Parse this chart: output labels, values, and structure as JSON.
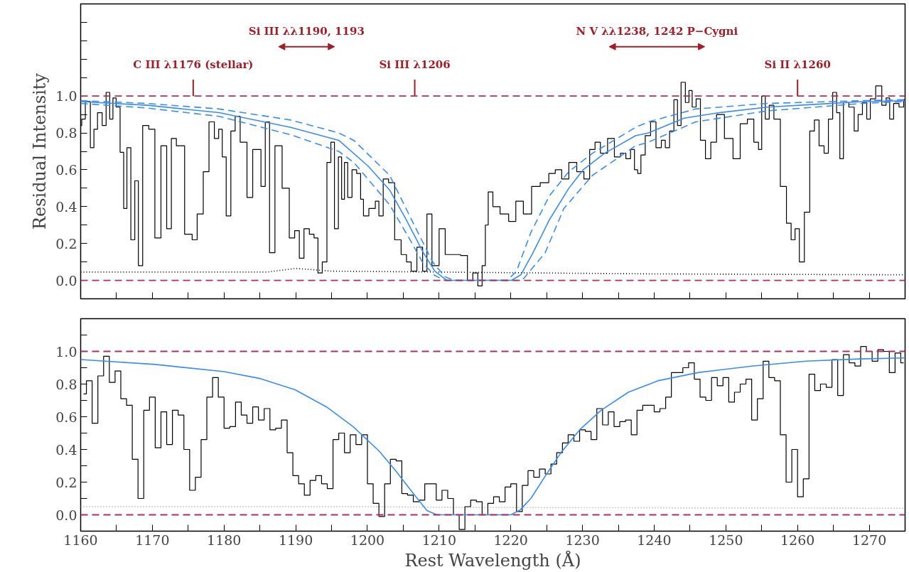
{
  "chart_data": [
    {
      "type": "step",
      "ylabel": "Residual Intensity",
      "xlim": [
        1160,
        1275
      ],
      "ylim": [
        -0.1,
        1.5
      ],
      "tick_labels": "y",
      "xticks": [
        {
          "value": 1160,
          "label": null
        },
        {
          "value": 1165,
          "label": null
        },
        {
          "value": 1170,
          "label": null
        },
        {
          "value": 1175,
          "label": null
        },
        {
          "value": 1180,
          "label": null
        },
        {
          "value": 1185,
          "label": null
        },
        {
          "value": 1190,
          "label": null
        },
        {
          "value": 1195,
          "label": null
        },
        {
          "value": 1200,
          "label": null
        },
        {
          "value": 1205,
          "label": null
        },
        {
          "value": 1210,
          "label": null
        },
        {
          "value": 1215,
          "label": null
        },
        {
          "value": 1220,
          "label": null
        },
        {
          "value": 1225,
          "label": null
        },
        {
          "value": 1230,
          "label": null
        },
        {
          "value": 1235,
          "label": null
        },
        {
          "value": 1240,
          "label": null
        },
        {
          "value": 1245,
          "label": null
        },
        {
          "value": 1250,
          "label": null
        },
        {
          "value": 1255,
          "label": null
        },
        {
          "value": 1260,
          "label": null
        },
        {
          "value": 1265,
          "label": null
        },
        {
          "value": 1270,
          "label": null
        }
      ],
      "yticks": [
        {
          "value": 0,
          "label": "0.0"
        },
        {
          "value": 0.1,
          "label": null
        },
        {
          "value": 0.2,
          "label": "0.2"
        },
        {
          "value": 0.3,
          "label": null
        },
        {
          "value": 0.4,
          "label": "0.4"
        },
        {
          "value": 0.5,
          "label": null
        },
        {
          "value": 0.6,
          "label": "0.6"
        },
        {
          "value": 0.7,
          "label": null
        },
        {
          "value": 0.8,
          "label": "0.8"
        },
        {
          "value": 0.9,
          "label": null
        },
        {
          "value": 1.0,
          "label": "1.0"
        },
        {
          "value": 1.1,
          "label": null
        },
        {
          "value": 1.2,
          "label": null
        },
        {
          "value": 1.3,
          "label": null
        },
        {
          "value": 1.4,
          "label": null
        }
      ],
      "ref_lines": [
        {
          "axis": "y",
          "value": 1.0,
          "color": "#a8325a",
          "line_style": "dashed"
        },
        {
          "axis": "y",
          "value": 0.0,
          "color": "#a8325a",
          "line_style": "dashed"
        }
      ],
      "annotations": [
        {
          "text": "C III λ1176 (stellar)",
          "x": 1175.7,
          "y": 1.0
        },
        "Si III λλ1190, 1193",
        "N V λλ1238, 1242 P−Cygni",
        {
          "text": "Si III λ1206",
          "x": 1206.6,
          "y": 1.0
        },
        {
          "text": "Si II λ1260",
          "x": 1260.0,
          "y": 1.0
        }
      ],
      "series": [
        {
          "type": "line",
          "color": "#000000",
          "line_style": "dotted",
          "x": [
            1160,
            1186,
            1190,
            1195,
            1210,
            1240,
            1275
          ],
          "values": [
            0.045,
            0.045,
            0.065,
            0.05,
            0.045,
            0.035,
            0.03
          ]
        },
        {
          "color": "#000000",
          "x": [
            1160.0,
            1160.3,
            1161.0,
            1161.7,
            1162.0,
            1162.7,
            1163.3,
            1163.8,
            1164.3,
            1164.7,
            1165.2,
            1165.8,
            1166.2,
            1166.7,
            1167.3,
            1167.8,
            1168.3,
            1169.0,
            1170.0,
            1170.7,
            1171.7,
            1172.3,
            1173.0,
            1173.7,
            1175.3,
            1175.8,
            1176.7,
            1177.5,
            1178.3,
            1179.0,
            1179.5,
            1180.0,
            1180.6,
            1181.3,
            1181.8,
            1182.7,
            1183.7,
            1184.3,
            1184.8,
            1185.5,
            1186.0,
            1186.7,
            1187.5,
            1188.7,
            1189.5,
            1190.2,
            1190.8,
            1191.5,
            1192.3,
            1192.8,
            1193.4,
            1194.0,
            1194.7,
            1195.1,
            1195.7,
            1196.2,
            1196.6,
            1197.0,
            1197.5,
            1198.2,
            1198.8,
            1199.3,
            1199.6,
            1200.8,
            1201.4,
            1201.8,
            1202.6,
            1203.3,
            1204.3,
            1205.1,
            1205.8,
            1206.4,
            1207.4,
            1208.0,
            1208.6,
            1209.4,
            1210.6,
            1211.1,
            1212.4,
            1213.6,
            1214.3,
            1215.1,
            1215.7,
            1216.3,
            1216.6,
            1217.1,
            1217.9,
            1219.1,
            1220.3,
            1221.1,
            1222.4,
            1223.4,
            1224.8,
            1225.8,
            1226.6,
            1227.6,
            1228.6,
            1229.8,
            1230.6,
            1231.4,
            1232.1,
            1232.9,
            1234.1,
            1234.8,
            1235.8,
            1236.3,
            1237.1,
            1237.4,
            1238.0,
            1238.3,
            1239.2,
            1239.8,
            1240.7,
            1241.3,
            1241.8,
            1242.5,
            1243.0,
            1243.5,
            1244.0,
            1244.7,
            1245.0,
            1245.6,
            1246.1,
            1246.8,
            1247.5,
            1248.3,
            1249.1,
            1250.5,
            1251.5,
            1252.5,
            1253.5,
            1254.3,
            1254.8,
            1255.2,
            1255.8,
            1256.3,
            1257.1,
            1258.1,
            1258.8,
            1259.4,
            1259.9,
            1260.6,
            1261.3,
            1262.1,
            1262.6,
            1263.4,
            1264.0,
            1264.6,
            1265.2,
            1265.7,
            1266.1,
            1266.7,
            1267.6,
            1268.2,
            1268.7,
            1269.4,
            1269.9,
            1270.4,
            1271.4,
            1272.1,
            1272.6,
            1273.1,
            1273.7,
            1274.6,
            1275.0
          ],
          "values": [
            0.84,
            0.875,
            0.97,
            0.72,
            0.82,
            0.91,
            0.84,
            1.02,
            0.875,
            0.99,
            0.94,
            0.695,
            0.39,
            0.72,
            0.22,
            0.54,
            0.08,
            0.84,
            0.82,
            0.23,
            0.73,
            0.28,
            0.77,
            0.73,
            0.25,
            0.22,
            0.36,
            0.59,
            0.86,
            0.77,
            0.82,
            0.67,
            0.35,
            0.81,
            0.89,
            0.75,
            0.45,
            0.71,
            0.71,
            0.51,
            0.86,
            0.15,
            0.73,
            0.5,
            0.23,
            0.27,
            0.12,
            0.28,
            0.25,
            0.23,
            0.04,
            0.1,
            0.64,
            0.75,
            0.28,
            0.67,
            0.44,
            0.64,
            0.45,
            0.6,
            0.58,
            0.44,
            0.35,
            0.39,
            0.43,
            0.35,
            0.55,
            0.53,
            0.22,
            0.14,
            0.1,
            0.05,
            0.18,
            0.05,
            0.36,
            0.08,
            0.28,
            0.14,
            0.14,
            0.135,
            0.0,
            0.04,
            -0.03,
            0.08,
            0.3,
            0.48,
            0.4,
            0.36,
            0.32,
            0.43,
            0.36,
            0.51,
            0.53,
            0.58,
            0.6,
            0.55,
            0.64,
            0.59,
            0.55,
            0.71,
            0.75,
            0.69,
            0.77,
            0.67,
            0.69,
            0.66,
            0.71,
            0.6,
            0.58,
            0.68,
            0.785,
            0.86,
            0.72,
            0.76,
            0.72,
            0.81,
            0.98,
            0.84,
            1.075,
            0.965,
            1.03,
            0.94,
            0.985,
            0.76,
            0.66,
            0.75,
            0.9,
            0.77,
            0.66,
            0.85,
            0.875,
            0.75,
            0.71,
            1.0,
            0.875,
            0.95,
            0.875,
            0.51,
            0.31,
            0.22,
            0.28,
            0.1,
            0.37,
            0.81,
            0.87,
            0.73,
            0.69,
            0.875,
            1.02,
            0.91,
            0.66,
            0.965,
            0.94,
            0.81,
            0.9,
            0.965,
            0.875,
            0.985,
            1.055,
            0.95,
            0.99,
            0.875,
            0.96,
            0.94,
            0.98
          ]
        },
        {
          "type": "line",
          "color": "#3b8cf0",
          "line_style": "dashed",
          "x": [
            1160,
            1169.3,
            1179.3,
            1189.3,
            1196,
            1198.1,
            1203.1,
            1206.4,
            1209.1,
            1210.8,
            1212.1,
            1219.5,
            1220.8,
            1222.8,
            1225.4,
            1228.1,
            1231.4,
            1237.4,
            1239.2,
            1245.8,
            1255.8,
            1269.1,
            1275
          ],
          "values": [
            0.975,
            0.96,
            0.93,
            0.87,
            0.8,
            0.76,
            0.57,
            0.31,
            0.1,
            0.02,
            0.0,
            0.0,
            0.05,
            0.26,
            0.46,
            0.59,
            0.69,
            0.83,
            0.86,
            0.93,
            0.96,
            0.975,
            0.98
          ]
        },
        {
          "type": "line",
          "color": "#3b8cf0",
          "line_style": "dashed",
          "x": [
            1160,
            1169.3,
            1179.3,
            1189.3,
            1196,
            1198.1,
            1203.1,
            1205.8,
            1207.8,
            1209.4,
            1210.8,
            1221,
            1221.8,
            1224.8,
            1227.4,
            1231.4,
            1237.4,
            1239.2,
            1245.8,
            1255.8,
            1269.1,
            1275
          ],
          "values": [
            0.96,
            0.935,
            0.89,
            0.79,
            0.7,
            0.64,
            0.41,
            0.23,
            0.09,
            0.026,
            0.0,
            0.0,
            0.01,
            0.15,
            0.39,
            0.57,
            0.73,
            0.75,
            0.86,
            0.92,
            0.96,
            0.97
          ]
        },
        {
          "type": "line",
          "color": "#3b8cf0",
          "line_style": "solid",
          "x": [
            1160,
            1169.3,
            1179.3,
            1189.3,
            1196,
            1200.1,
            1203.1,
            1205.4,
            1207.8,
            1209.4,
            1211.1,
            1220.1,
            1221.4,
            1223.1,
            1225.4,
            1228.1,
            1230.1,
            1233.1,
            1237.4,
            1239.2,
            1244.2,
            1249.1,
            1255.8,
            1262.4,
            1269.1,
            1275
          ],
          "values": [
            0.97,
            0.95,
            0.91,
            0.83,
            0.76,
            0.62,
            0.49,
            0.33,
            0.15,
            0.05,
            0.0,
            0.0,
            0.03,
            0.15,
            0.33,
            0.5,
            0.6,
            0.69,
            0.785,
            0.8,
            0.88,
            0.91,
            0.94,
            0.955,
            0.97,
            0.975
          ]
        }
      ]
    },
    {
      "type": "step",
      "xlabel": "Rest Wavelength (Å)",
      "xlim": [
        1160,
        1275
      ],
      "ylim": [
        -0.1,
        1.2
      ],
      "xticks": [
        {
          "value": 1160,
          "label": "1160"
        },
        {
          "value": 1165,
          "label": null
        },
        {
          "value": 1170,
          "label": "1170"
        },
        {
          "value": 1175,
          "label": null
        },
        {
          "value": 1180,
          "label": "1180"
        },
        {
          "value": 1185,
          "label": null
        },
        {
          "value": 1190,
          "label": "1190"
        },
        {
          "value": 1195,
          "label": null
        },
        {
          "value": 1200,
          "label": "1200"
        },
        {
          "value": 1205,
          "label": null
        },
        {
          "value": 1210,
          "label": "1210"
        },
        {
          "value": 1215,
          "label": null
        },
        {
          "value": 1220,
          "label": "1220"
        },
        {
          "value": 1225,
          "label": null
        },
        {
          "value": 1230,
          "label": "1230"
        },
        {
          "value": 1235,
          "label": null
        },
        {
          "value": 1240,
          "label": "1240"
        },
        {
          "value": 1245,
          "label": null
        },
        {
          "value": 1250,
          "label": "1250"
        },
        {
          "value": 1255,
          "label": null
        },
        {
          "value": 1260,
          "label": "1260"
        },
        {
          "value": 1265,
          "label": null
        },
        {
          "value": 1270,
          "label": "1270"
        }
      ],
      "yticks": [
        {
          "value": 0,
          "label": "0.0"
        },
        {
          "value": 0.1,
          "label": null
        },
        {
          "value": 0.2,
          "label": "0.2"
        },
        {
          "value": 0.3,
          "label": null
        },
        {
          "value": 0.4,
          "label": "0.4"
        },
        {
          "value": 0.5,
          "label": null
        },
        {
          "value": 0.6,
          "label": "0.6"
        },
        {
          "value": 0.7,
          "label": null
        },
        {
          "value": 0.8,
          "label": "0.8"
        },
        {
          "value": 0.9,
          "label": null
        },
        {
          "value": 1.0,
          "label": "1.0"
        },
        {
          "value": 1.1,
          "label": null
        }
      ],
      "ref_lines": [
        {
          "axis": "y",
          "value": 1.0,
          "color": "#a8325a",
          "line_style": "dashed"
        },
        {
          "axis": "y",
          "value": 0.0,
          "color": "#a8325a",
          "line_style": "dashed"
        }
      ],
      "series": [
        {
          "type": "line",
          "color": "#999999",
          "line_style": "dotted",
          "x": [
            1160,
            1200,
            1215,
            1275
          ],
          "values": [
            0.05,
            0.05,
            0.045,
            0.04
          ]
        },
        {
          "color": "#000000",
          "x": [
            1160.4,
            1161.2,
            1162.0,
            1162.8,
            1163.6,
            1164.4,
            1165.2,
            1166.0,
            1166.8,
            1167.6,
            1168.4,
            1169.2,
            1170.0,
            1170.8,
            1171.6,
            1172.4,
            1173.2,
            1174.0,
            1174.8,
            1175.6,
            1176.4,
            1177.2,
            1178.0,
            1178.8,
            1179.6,
            1180.4,
            1181.2,
            1182.0,
            1182.8,
            1183.6,
            1184.4,
            1185.2,
            1186.0,
            1186.8,
            1187.6,
            1188.4,
            1189.2,
            1190.0,
            1190.8,
            1191.6,
            1192.4,
            1193.2,
            1194.0,
            1194.8,
            1195.6,
            1196.4,
            1197.2,
            1198.0,
            1198.8,
            1199.6,
            1200.4,
            1201.2,
            1202.0,
            1202.8,
            1203.6,
            1204.4,
            1205.2,
            1206.0,
            1206.8,
            1207.6,
            1208.4,
            1209.2,
            1210.0,
            1210.8,
            1211.6,
            1212.4,
            1213.2,
            1214.0,
            1214.8,
            1215.6,
            1216.4,
            1217.2,
            1218.0,
            1218.8,
            1219.6,
            1220.4,
            1221.2,
            1222.0,
            1222.8,
            1223.6,
            1224.4,
            1225.2,
            1226.0,
            1226.8,
            1227.6,
            1228.4,
            1229.2,
            1230.0,
            1230.8,
            1231.6,
            1232.4,
            1233.2,
            1234.0,
            1234.8,
            1235.6,
            1236.4,
            1237.2,
            1238.0,
            1238.8,
            1239.6,
            1240.4,
            1241.2,
            1242.0,
            1242.8,
            1243.6,
            1244.4,
            1245.2,
            1246.0,
            1246.8,
            1247.6,
            1248.4,
            1249.2,
            1250.0,
            1250.8,
            1251.6,
            1252.4,
            1253.2,
            1254.0,
            1254.8,
            1255.6,
            1256.4,
            1257.2,
            1258.0,
            1258.8,
            1259.6,
            1260.4,
            1261.2,
            1262.0,
            1262.8,
            1263.6,
            1264.4,
            1265.2,
            1266.0,
            1266.8,
            1267.6,
            1268.4,
            1269.2,
            1270.0,
            1270.8,
            1271.6,
            1272.4,
            1273.2,
            1274.0,
            1274.8
          ],
          "values": [
            0.74,
            0.82,
            0.56,
            0.85,
            0.97,
            0.81,
            0.88,
            0.71,
            0.67,
            0.34,
            0.1,
            0.64,
            0.72,
            0.41,
            0.63,
            0.43,
            0.64,
            0.61,
            0.4,
            0.15,
            0.23,
            0.46,
            0.72,
            0.84,
            0.72,
            0.53,
            0.54,
            0.69,
            0.61,
            0.56,
            0.66,
            0.58,
            0.65,
            0.52,
            0.53,
            0.58,
            0.38,
            0.24,
            0.19,
            0.12,
            0.21,
            0.24,
            0.19,
            0.16,
            0.46,
            0.5,
            0.38,
            0.49,
            0.43,
            0.49,
            0.19,
            0.07,
            -0.01,
            0.19,
            0.34,
            0.33,
            0.13,
            0.12,
            0.08,
            0.09,
            0.19,
            0.19,
            0.09,
            0.15,
            0.1,
            0.0,
            -0.09,
            0.05,
            0.09,
            0.08,
            0.0,
            0.07,
            0.11,
            0.08,
            0.17,
            0.19,
            0.02,
            0.18,
            0.27,
            0.23,
            0.28,
            0.25,
            0.31,
            0.38,
            0.44,
            0.49,
            0.45,
            0.52,
            0.51,
            0.46,
            0.65,
            0.55,
            0.63,
            0.54,
            0.57,
            0.58,
            0.49,
            0.64,
            0.67,
            0.67,
            0.63,
            0.65,
            0.72,
            0.87,
            0.87,
            0.9,
            0.93,
            0.83,
            0.72,
            0.7,
            0.84,
            0.79,
            0.84,
            0.69,
            0.75,
            0.8,
            0.83,
            0.58,
            0.71,
            0.94,
            0.84,
            0.82,
            0.49,
            0.2,
            0.4,
            0.11,
            0.22,
            0.86,
            0.76,
            0.8,
            0.78,
            0.95,
            0.73,
            0.98,
            0.93,
            0.91,
            1.03,
            1.0,
            0.94,
            1.01,
            1.0,
            0.87,
            0.99,
            0.93
          ]
        },
        {
          "type": "line",
          "color": "#3b8cf0",
          "line_style": "solid",
          "x": [
            1160,
            1170.4,
            1180,
            1185.1,
            1189.9,
            1194.3,
            1198,
            1201.7,
            1204,
            1206.4,
            1208.3,
            1209.7,
            1220,
            1221.3,
            1222.8,
            1224.7,
            1227,
            1229.6,
            1232.6,
            1236.4,
            1240.5,
            1246.1,
            1253.6,
            1261.2,
            1268.7,
            1274.9
          ],
          "values": [
            0.95,
            0.92,
            0.876,
            0.833,
            0.765,
            0.66,
            0.54,
            0.387,
            0.266,
            0.13,
            0.026,
            0.0,
            0.0,
            0.03,
            0.1,
            0.23,
            0.38,
            0.52,
            0.64,
            0.75,
            0.82,
            0.87,
            0.91,
            0.94,
            0.954,
            0.96
          ]
        }
      ]
    }
  ]
}
